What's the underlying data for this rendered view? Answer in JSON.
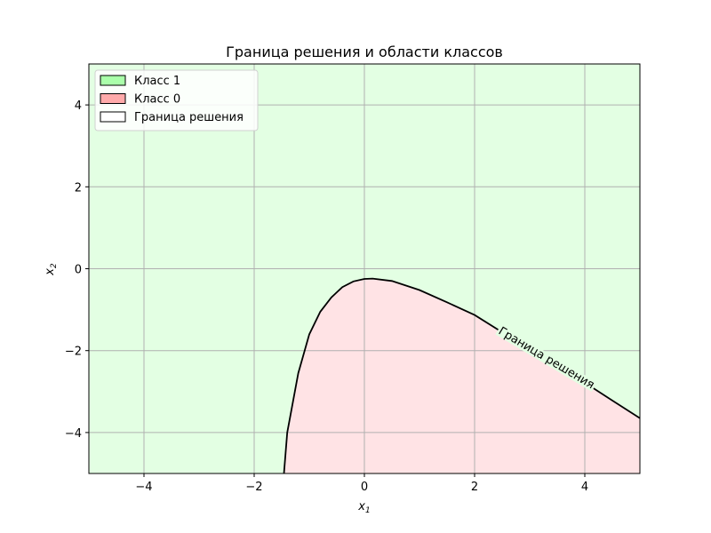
{
  "chart_data": {
    "type": "area",
    "title": "Граница решения и области классов",
    "xlabel": "x",
    "xlabel_sub": "1",
    "ylabel": "x",
    "ylabel_sub": "2",
    "xlim": [
      -5,
      5
    ],
    "ylim": [
      -5,
      5
    ],
    "xticks": [
      -4,
      -2,
      0,
      2,
      4
    ],
    "yticks": [
      -4,
      -2,
      0,
      2,
      4
    ],
    "grid": true,
    "legend_position": "top-left",
    "legend": [
      {
        "label": "Класс 1",
        "color": "#aaffaa"
      },
      {
        "label": "Класс 0",
        "color": "#ffaaaa"
      },
      {
        "label": "Граница решения",
        "color": "#ffffff"
      }
    ],
    "regions": {
      "class1_color": "#e3ffe3",
      "class0_color": "#ffe3e5"
    },
    "boundary": {
      "label": "Граница решения",
      "label_at_x": 3.3,
      "color": "#000000",
      "points": [
        {
          "x": -1.46,
          "y": -5.0
        },
        {
          "x": -1.4,
          "y": -4.0
        },
        {
          "x": -1.2,
          "y": -2.55
        },
        {
          "x": -1.0,
          "y": -1.6
        },
        {
          "x": -0.8,
          "y": -1.05
        },
        {
          "x": -0.6,
          "y": -0.7
        },
        {
          "x": -0.4,
          "y": -0.45
        },
        {
          "x": -0.2,
          "y": -0.31
        },
        {
          "x": 0.0,
          "y": -0.25
        },
        {
          "x": 0.15,
          "y": -0.24
        },
        {
          "x": 0.5,
          "y": -0.3
        },
        {
          "x": 1.0,
          "y": -0.52
        },
        {
          "x": 1.5,
          "y": -0.82
        },
        {
          "x": 2.0,
          "y": -1.13
        },
        {
          "x": 2.5,
          "y": -1.55
        },
        {
          "x": 3.0,
          "y": -1.95
        },
        {
          "x": 3.5,
          "y": -2.35
        },
        {
          "x": 4.0,
          "y": -2.78
        },
        {
          "x": 4.5,
          "y": -3.22
        },
        {
          "x": 5.0,
          "y": -3.65
        }
      ]
    }
  }
}
